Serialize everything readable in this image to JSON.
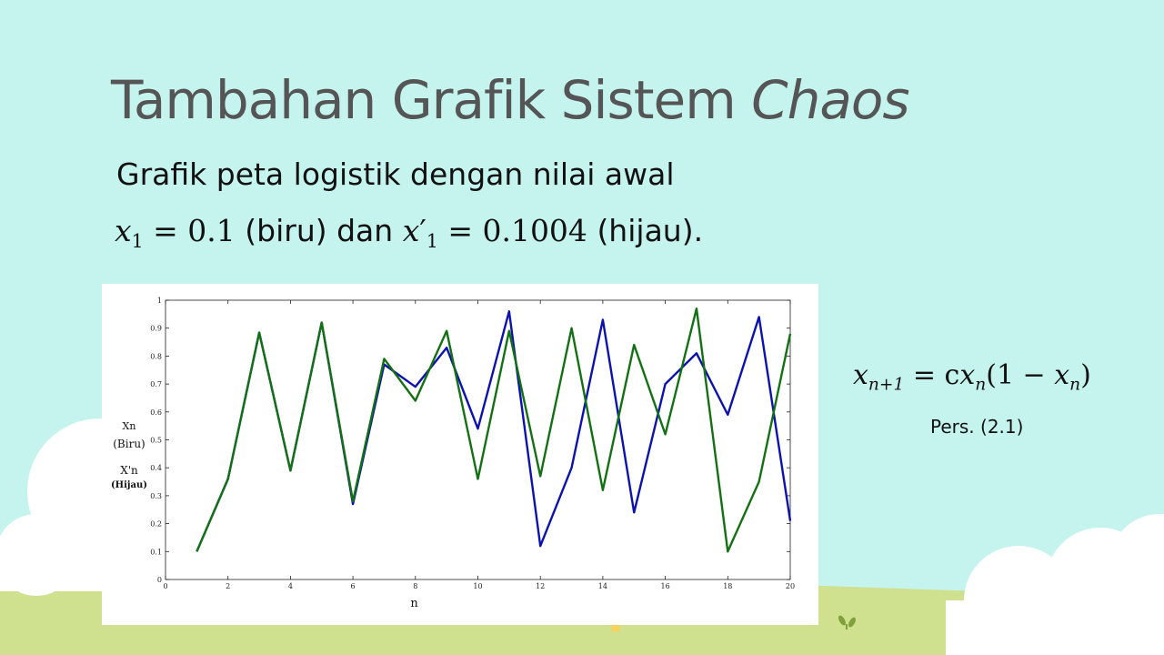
{
  "slide": {
    "title_main": "Tambahan Grafik Sistem",
    "title_italic": "Chaos",
    "subtitle": "Grafik peta logistik dengan nilai awal",
    "formula_line": {
      "x1_var": "x",
      "x1_sub": "1",
      "x1_eq": " = 0.1",
      "biru_text": "(biru) dan",
      "x1p_var": "x",
      "x1p_prime": "′",
      "x1p_sub": "1",
      "x1p_eq": " = 0.1004",
      "hijau_text": "(hijau)."
    },
    "equation": {
      "lhs_var": "x",
      "lhs_sub": "n+1",
      "rhs_a": " = c",
      "rhs_var1": "x",
      "rhs_sub1": "n",
      "rhs_b": "(1 − ",
      "rhs_var2": "x",
      "rhs_sub2": "n",
      "rhs_c": ")"
    },
    "equation_caption": "Pers. (2.1)"
  },
  "colors": {
    "background": "#c5f4ef",
    "blue_series": "#0b12b0",
    "green_series": "#137113",
    "grass": "#cfe08e",
    "cloud": "#ffffff"
  },
  "chart_data": {
    "type": "line",
    "xlabel": "n",
    "ylabel_lines": [
      "Xn",
      "(Biru)",
      "X'n",
      "(Hijau)"
    ],
    "xlim": [
      0,
      20
    ],
    "ylim": [
      0,
      1
    ],
    "xticks": [
      0,
      2,
      4,
      6,
      8,
      10,
      12,
      14,
      16,
      18,
      20
    ],
    "yticks": [
      0,
      0.1,
      0.2,
      0.3,
      0.4,
      0.5,
      0.6,
      0.7,
      0.8,
      0.9,
      1
    ],
    "grid": false,
    "x": [
      1,
      2,
      3,
      4,
      5,
      6,
      7,
      8,
      9,
      10,
      11,
      12,
      13,
      14,
      15,
      16,
      17,
      18,
      19,
      20
    ],
    "series": [
      {
        "color": "#0b12b0",
        "values": [
          0.1,
          0.36,
          0.884,
          0.39,
          0.92,
          0.27,
          0.77,
          0.69,
          0.83,
          0.54,
          0.96,
          0.12,
          0.4,
          0.93,
          0.24,
          0.7,
          0.81,
          0.59,
          0.94,
          0.21
        ]
      },
      {
        "color": "#137113",
        "values": [
          0.1,
          0.36,
          0.884,
          0.39,
          0.92,
          0.28,
          0.79,
          0.64,
          0.89,
          0.36,
          0.89,
          0.37,
          0.9,
          0.32,
          0.84,
          0.52,
          0.97,
          0.1,
          0.35,
          0.88
        ]
      }
    ]
  }
}
